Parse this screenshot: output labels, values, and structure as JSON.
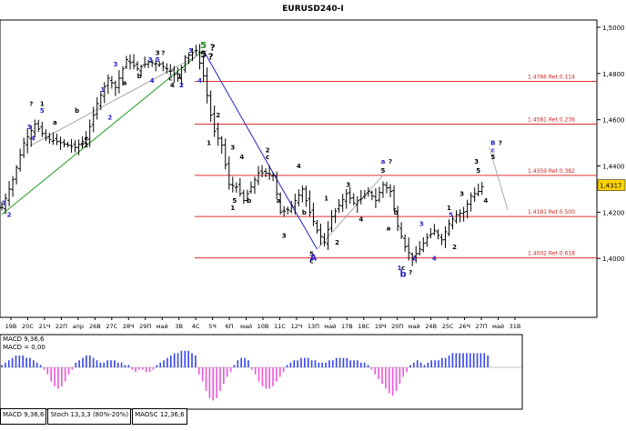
{
  "chart_data": {
    "type": "candlestick",
    "title": "EURUSD240-I",
    "price_axis": {
      "ticks": [
        "1,5000",
        "1,4800",
        "1,4600",
        "1,4400",
        "1,4200",
        "1,4000"
      ],
      "current_price": "1,4317"
    },
    "time_axis": {
      "labels": [
        "19В",
        "20С",
        "21Ч",
        "22П",
        "апр",
        "26В",
        "27С",
        "28Ч",
        "29П",
        "май",
        "3В",
        "4С",
        "5Ч",
        "6П",
        "май",
        "10В",
        "11С",
        "12Ч",
        "13П",
        "май",
        "17В",
        "18С",
        "19Ч",
        "20П",
        "май",
        "24В",
        "25С",
        "26Ч",
        "27П",
        "май",
        "31В"
      ]
    },
    "fib_levels": [
      {
        "label": "1.4766 Ret 0.114",
        "value": 1.4766
      },
      {
        "label": "1.4581 Ret 0.236",
        "value": 1.4581
      },
      {
        "label": "1.4359 Ret 0.382",
        "value": 1.4359
      },
      {
        "label": "1.4181 Ret 0.500",
        "value": 1.4181
      },
      {
        "label": "1.4002 Ret 0.618",
        "value": 1.4002
      }
    ],
    "price_path": [
      [
        0,
        1.422
      ],
      [
        3,
        1.434
      ],
      [
        6,
        1.45
      ],
      [
        9,
        1.458
      ],
      [
        12,
        1.452
      ],
      [
        16,
        1.45
      ],
      [
        20,
        1.448
      ],
      [
        23,
        1.452
      ],
      [
        26,
        1.467
      ],
      [
        29,
        1.478
      ],
      [
        31,
        1.474
      ],
      [
        34,
        1.486
      ],
      [
        37,
        1.482
      ],
      [
        40,
        1.485
      ],
      [
        43,
        1.484
      ],
      [
        46,
        1.481
      ],
      [
        48,
        1.478
      ],
      [
        50,
        1.487
      ],
      [
        53,
        1.49
      ],
      [
        55,
        1.479
      ],
      [
        57,
        1.462
      ],
      [
        58,
        1.455
      ],
      [
        60,
        1.449
      ],
      [
        62,
        1.432
      ],
      [
        64,
        1.431
      ],
      [
        66,
        1.425
      ],
      [
        68,
        1.431
      ],
      [
        70,
        1.437
      ],
      [
        72,
        1.437
      ],
      [
        74,
        1.436
      ],
      [
        76,
        1.42
      ],
      [
        78,
        1.421
      ],
      [
        80,
        1.425
      ],
      [
        82,
        1.43
      ],
      [
        84,
        1.42
      ],
      [
        86,
        1.412
      ],
      [
        88,
        1.407
      ],
      [
        90,
        1.418
      ],
      [
        92,
        1.423
      ],
      [
        94,
        1.428
      ],
      [
        96,
        1.424
      ],
      [
        98,
        1.426
      ],
      [
        100,
        1.429
      ],
      [
        102,
        1.425
      ],
      [
        104,
        1.432
      ],
      [
        106,
        1.429
      ],
      [
        108,
        1.414
      ],
      [
        110,
        1.405
      ],
      [
        112,
        1.4
      ],
      [
        114,
        1.404
      ],
      [
        116,
        1.409
      ],
      [
        118,
        1.412
      ],
      [
        120,
        1.408
      ],
      [
        122,
        1.415
      ],
      [
        124,
        1.419
      ],
      [
        126,
        1.42
      ],
      [
        128,
        1.427
      ],
      [
        130,
        1.429
      ],
      [
        131,
        1.431
      ]
    ],
    "wave_labels": [
      {
        "text": "5",
        "x": 55,
        "y": 1.491,
        "color": "#1a8a1a",
        "size": "large"
      },
      {
        "text": "5",
        "x": 55,
        "y": 1.487,
        "color": "#000000",
        "size": "large"
      },
      {
        "text": "?",
        "x": 57.5,
        "y": 1.49,
        "color": "#000000",
        "size": "large"
      },
      {
        "text": "?",
        "x": 57,
        "y": 1.486,
        "color": "#000000",
        "size": "large"
      },
      {
        "text": "4",
        "x": 54,
        "y": 1.476,
        "color": "#2222cc",
        "size": "small"
      },
      {
        "text": "3",
        "x": 51.5,
        "y": 1.489,
        "color": "#2222cc",
        "size": "small"
      },
      {
        "text": "3",
        "x": 42.5,
        "y": 1.488,
        "color": "#000000",
        "size": "small"
      },
      {
        "text": "?",
        "x": 44,
        "y": 1.488,
        "color": "#000000",
        "size": "small"
      },
      {
        "text": "3",
        "x": 40.5,
        "y": 1.485,
        "color": "#2222cc",
        "size": "small"
      },
      {
        "text": "5",
        "x": 42.5,
        "y": 1.485,
        "color": "#2222cc",
        "size": "small"
      },
      {
        "text": "4",
        "x": 41,
        "y": 1.476,
        "color": "#2222cc",
        "size": "small"
      },
      {
        "text": "c",
        "x": 46,
        "y": 1.477,
        "color": "#000000",
        "size": "small"
      },
      {
        "text": "1",
        "x": 48.5,
        "y": 1.478,
        "color": "#000000",
        "size": "small"
      },
      {
        "text": "2",
        "x": 49,
        "y": 1.474,
        "color": "#2222cc",
        "size": "small"
      },
      {
        "text": "4",
        "x": 46.5,
        "y": 1.474,
        "color": "#000000",
        "size": "small"
      },
      {
        "text": "3",
        "x": 31,
        "y": 1.483,
        "color": "#2222cc",
        "size": "small"
      },
      {
        "text": "a",
        "x": 33.5,
        "y": 1.475,
        "color": "#000000",
        "size": "small"
      },
      {
        "text": "b",
        "x": 37.5,
        "y": 1.478,
        "color": "#000000",
        "size": "small"
      },
      {
        "text": "2",
        "x": 29.5,
        "y": 1.46,
        "color": "#2222cc",
        "size": "small"
      },
      {
        "text": "1",
        "x": 27.5,
        "y": 1.472,
        "color": "#2222cc",
        "size": "small"
      },
      {
        "text": "?",
        "x": 8,
        "y": 1.466,
        "color": "#000000",
        "size": "small"
      },
      {
        "text": "1",
        "x": 11,
        "y": 1.466,
        "color": "#000000",
        "size": "small"
      },
      {
        "text": "5",
        "x": 11,
        "y": 1.463,
        "color": "#2222cc",
        "size": "small"
      },
      {
        "text": "3",
        "x": 7.5,
        "y": 1.456,
        "color": "#2222cc",
        "size": "small"
      },
      {
        "text": "4",
        "x": 8.5,
        "y": 1.451,
        "color": "#2222cc",
        "size": "small"
      },
      {
        "text": "a",
        "x": 14.5,
        "y": 1.458,
        "color": "#000000",
        "size": "small"
      },
      {
        "text": "b",
        "x": 20.5,
        "y": 1.463,
        "color": "#000000",
        "size": "small"
      },
      {
        "text": "c",
        "x": 23,
        "y": 1.451,
        "color": "#000000",
        "size": "small"
      },
      {
        "text": "?",
        "x": 22,
        "y": 1.448,
        "color": "#000000",
        "size": "small"
      },
      {
        "text": "2",
        "x": 23,
        "y": 1.448,
        "color": "#000000",
        "size": "small"
      },
      {
        "text": "1",
        "x": 0.5,
        "y": 1.423,
        "color": "#2222cc",
        "size": "small"
      },
      {
        "text": "2",
        "x": 2,
        "y": 1.418,
        "color": "#2222cc",
        "size": "small"
      },
      {
        "text": "1",
        "x": 56.5,
        "y": 1.449,
        "color": "#000000",
        "size": "small"
      },
      {
        "text": "2",
        "x": 59,
        "y": 1.461,
        "color": "#000000",
        "size": "small"
      },
      {
        "text": "3",
        "x": 63,
        "y": 1.447,
        "color": "#000000",
        "size": "small"
      },
      {
        "text": "4",
        "x": 65.5,
        "y": 1.443,
        "color": "#000000",
        "size": "small"
      },
      {
        "text": "5",
        "x": 63.5,
        "y": 1.424,
        "color": "#000000",
        "size": "small"
      },
      {
        "text": "1",
        "x": 63,
        "y": 1.421,
        "color": "#000000",
        "size": "small"
      },
      {
        "text": "b",
        "x": 67.5,
        "y": 1.424,
        "color": "#000000",
        "size": "small"
      },
      {
        "text": "2",
        "x": 72.5,
        "y": 1.446,
        "color": "#000000",
        "size": "small"
      },
      {
        "text": "c",
        "x": 72.5,
        "y": 1.443,
        "color": "#000000",
        "size": "small"
      },
      {
        "text": "a",
        "x": 75.5,
        "y": 1.424,
        "color": "#000000",
        "size": "small"
      },
      {
        "text": "3",
        "x": 77,
        "y": 1.409,
        "color": "#000000",
        "size": "small"
      },
      {
        "text": "4",
        "x": 81,
        "y": 1.439,
        "color": "#000000",
        "size": "small"
      },
      {
        "text": "b",
        "x": 82.5,
        "y": 1.419,
        "color": "#000000",
        "size": "small"
      },
      {
        "text": "5",
        "x": 84.5,
        "y": 1.401,
        "color": "#000000",
        "size": "small"
      },
      {
        "text": "c",
        "x": 84.5,
        "y": 1.398,
        "color": "#000000",
        "size": "small"
      },
      {
        "text": "A",
        "x": 85,
        "y": 1.399,
        "color": "#2222cc",
        "size": "large"
      },
      {
        "text": "1",
        "x": 88.5,
        "y": 1.425,
        "color": "#000000",
        "size": "small"
      },
      {
        "text": "2",
        "x": 91.5,
        "y": 1.406,
        "color": "#000000",
        "size": "small"
      },
      {
        "text": "3",
        "x": 94.5,
        "y": 1.431,
        "color": "#000000",
        "size": "small"
      },
      {
        "text": "4",
        "x": 98,
        "y": 1.416,
        "color": "#000000",
        "size": "small"
      },
      {
        "text": "5",
        "x": 104,
        "y": 1.437,
        "color": "#000000",
        "size": "small"
      },
      {
        "text": "a",
        "x": 104,
        "y": 1.441,
        "color": "#2222cc",
        "size": "small"
      },
      {
        "text": "?",
        "x": 106,
        "y": 1.441,
        "color": "#000000",
        "size": "small"
      },
      {
        "text": "a",
        "x": 105.5,
        "y": 1.412,
        "color": "#000000",
        "size": "small"
      },
      {
        "text": "b",
        "x": 107.5,
        "y": 1.419,
        "color": "#000000",
        "size": "small"
      },
      {
        "text": "c",
        "x": 109.5,
        "y": 1.395,
        "color": "#000000",
        "size": "small"
      },
      {
        "text": "b",
        "x": 109.5,
        "y": 1.392,
        "color": "#2222cc",
        "size": "large"
      },
      {
        "text": "?",
        "x": 111.5,
        "y": 1.393,
        "color": "#000000",
        "size": "small"
      },
      {
        "text": "1",
        "x": 108.5,
        "y": 1.395,
        "color": "#2222cc",
        "size": "small"
      },
      {
        "text": "2",
        "x": 112.5,
        "y": 1.399,
        "color": "#2222cc",
        "size": "small"
      },
      {
        "text": "3",
        "x": 114.5,
        "y": 1.414,
        "color": "#2222cc",
        "size": "small"
      },
      {
        "text": "4",
        "x": 118,
        "y": 1.399,
        "color": "#2222cc",
        "size": "small"
      },
      {
        "text": "1",
        "x": 122,
        "y": 1.421,
        "color": "#000000",
        "size": "small"
      },
      {
        "text": "5",
        "x": 122.5,
        "y": 1.418,
        "color": "#2222cc",
        "size": "small"
      },
      {
        "text": "2",
        "x": 123.5,
        "y": 1.404,
        "color": "#000000",
        "size": "small"
      },
      {
        "text": "3",
        "x": 125.5,
        "y": 1.427,
        "color": "#000000",
        "size": "small"
      },
      {
        "text": "4",
        "x": 132,
        "y": 1.424,
        "color": "#000000",
        "size": "small"
      },
      {
        "text": "3",
        "x": 129.5,
        "y": 1.441,
        "color": "#000000",
        "size": "small"
      },
      {
        "text": "5",
        "x": 130,
        "y": 1.437,
        "color": "#000000",
        "size": "small"
      },
      {
        "text": "B",
        "x": 134,
        "y": 1.449,
        "color": "#2222cc",
        "size": "small"
      },
      {
        "text": "c",
        "x": 134,
        "y": 1.446,
        "color": "#2222cc",
        "size": "small"
      },
      {
        "text": "5",
        "x": 134,
        "y": 1.443,
        "color": "#000000",
        "size": "small"
      },
      {
        "text": "?",
        "x": 136,
        "y": 1.449,
        "color": "#000000",
        "size": "small"
      }
    ],
    "trendlines": [
      {
        "color": "#1a9a1a",
        "from": [
          0,
          1.419
        ],
        "to": [
          55,
          1.49
        ]
      },
      {
        "color": "#2222cc",
        "from": [
          55,
          1.49
        ],
        "to": [
          74,
          1.437
        ]
      },
      {
        "color": "#2222cc",
        "from": [
          74,
          1.437
        ],
        "to": [
          86,
          1.404
        ]
      },
      {
        "color": "#aaaaaa",
        "from": [
          8,
          1.449
        ],
        "to": [
          56,
          1.49
        ]
      },
      {
        "color": "#aaaaaa",
        "from": [
          86,
          1.404
        ],
        "to": [
          104,
          1.436
        ]
      },
      {
        "color": "#aaaaaa",
        "from": [
          133,
          1.448
        ],
        "to": [
          138,
          1.421
        ]
      }
    ],
    "indicator": {
      "name": "MACD 9,36,6",
      "value_label": "MACD = 0,00",
      "histogram": [
        1,
        2,
        3,
        4,
        5,
        5,
        5,
        4,
        4,
        3,
        2,
        1,
        -1,
        -3,
        -6,
        -8,
        -9,
        -8,
        -6,
        -3,
        -1,
        2,
        3,
        4,
        5,
        5,
        4,
        3,
        2,
        2,
        3,
        3,
        3,
        2,
        2,
        1,
        1,
        -1,
        -2,
        -1,
        -1,
        -2,
        -2,
        -1,
        1,
        2,
        3,
        4,
        5,
        6,
        6,
        7,
        7,
        7,
        6,
        5,
        -3,
        -6,
        -10,
        -13,
        -14,
        -13,
        -10,
        -7,
        -4,
        -2,
        1,
        3,
        4,
        4,
        3,
        -1,
        -3,
        -6,
        -8,
        -9,
        -9,
        -8,
        -6,
        -4,
        -2,
        1,
        2,
        3,
        3,
        4,
        4,
        4,
        3,
        3,
        2,
        2,
        2,
        3,
        3,
        4,
        4,
        4,
        4,
        3,
        3,
        3,
        2,
        2,
        1,
        -1,
        -3,
        -5,
        -7,
        -9,
        -11,
        -12,
        -10,
        -7,
        -4,
        -2,
        1,
        2,
        3,
        2,
        1,
        2,
        3,
        3,
        3,
        4,
        4,
        5,
        6,
        6,
        6,
        6,
        6,
        6,
        6,
        6,
        6,
        6,
        5
      ],
      "positive_color": "#3344ee",
      "negative_color": "#ee55dd"
    }
  },
  "tabs": [
    "MACD 9,36,6",
    "Stoch 13,3,3 (80%-20%)",
    "MAOSC 12,36,6"
  ]
}
